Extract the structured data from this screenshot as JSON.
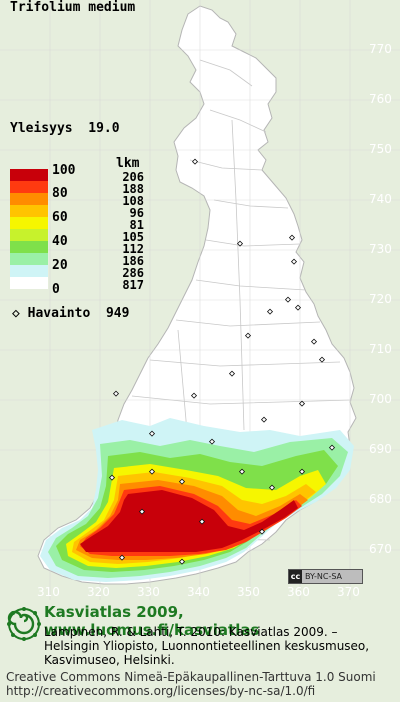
{
  "map": {
    "species": "Trifolium medium",
    "frequency_label": "Yleisyys",
    "frequency_value": "19.0",
    "legend_count_header": "lkm",
    "legend": [
      {
        "pct": "100",
        "count": "206",
        "color": "#c8000a"
      },
      {
        "pct": "80",
        "count": "188",
        "color": "#ff3a10"
      },
      {
        "pct": "",
        "count": "108",
        "color": "#ff8c00"
      },
      {
        "pct": "60",
        "count": "96",
        "color": "#ffc400"
      },
      {
        "pct": "",
        "count": "81",
        "color": "#f6f600"
      },
      {
        "pct": "40",
        "count": "105",
        "color": "#c7f22c"
      },
      {
        "pct": "",
        "count": "112",
        "color": "#7fe04a"
      },
      {
        "pct": "20",
        "count": "186",
        "color": "#9af0a6"
      },
      {
        "pct": "",
        "count": "286",
        "color": "#cff4f6"
      },
      {
        "pct": "0",
        "count": "817",
        "color": "#ffffff"
      }
    ],
    "observation_label": "Havainto",
    "observation_count": "949",
    "observation_symbol": "◇",
    "grid_y_labels": [
      "770",
      "760",
      "750",
      "740",
      "730",
      "720",
      "710",
      "700",
      "690",
      "680",
      "670"
    ],
    "grid_x_labels": [
      "310",
      "320",
      "330",
      "340",
      "350",
      "360",
      "370"
    ],
    "license_badge": "BY-NC-SA",
    "license_badge_cc": "cc"
  },
  "footer": {
    "logo_icon": "fern-spiral-icon",
    "title": "Kasviatlas 2009, www.luomus.fi/kasviatlas",
    "reference_lines": [
      "Lampinen, R. & Lahti, T. 2010: Kasviatlas 2009. –",
      "Helsingin Yliopisto, Luonnontieteellinen keskusmuseo,",
      "Kasvimuseo, Helsinki."
    ],
    "license_lines": [
      "Creative Commons Nimeä-Epäkaupallinen-Tarttuva 1.0 Suomi",
      "http://creativecommons.org/licenses/by-nc-sa/1.0/fi"
    ]
  },
  "colors": {
    "background": "#e6eedd",
    "land": "#ffffff",
    "border": "#b5b5b5",
    "grid": "#cfcfcf",
    "brand_green": "#1e7a22"
  }
}
